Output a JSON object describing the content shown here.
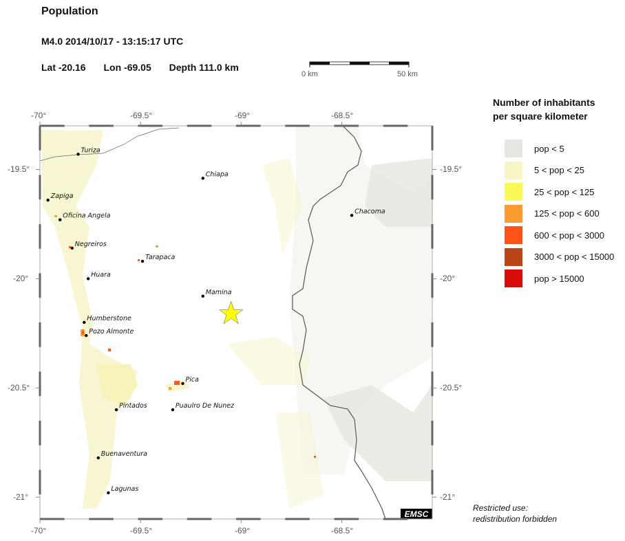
{
  "header": {
    "title": "Population",
    "event": "M4.0  2014/10/17 - 13:15:17 UTC",
    "lat": "Lat -20.16",
    "lon": "Lon -69.05",
    "depth": "Depth 111.0 km"
  },
  "scale_bar": {
    "start": "0 km",
    "end": "50 km"
  },
  "map": {
    "lon_range": [
      -70.0,
      -68.05
    ],
    "lat_range": [
      -21.1,
      -19.3
    ],
    "x_ticks": [
      "-70°",
      "-69.5°",
      "-69°",
      "-68.5°"
    ],
    "x_tick_values": [
      -70,
      -69.5,
      -69,
      -68.5
    ],
    "y_ticks": [
      "-19.5°",
      "-20°",
      "-20.5°",
      "-21°"
    ],
    "y_tick_values": [
      -19.5,
      -20,
      -20.5,
      -21
    ],
    "epicenter": {
      "lon": -69.05,
      "lat": -20.16,
      "marker": "star-icon",
      "color": "#ffff00"
    },
    "towns": [
      {
        "name": "Turiza",
        "lon": -69.81,
        "lat": -19.43
      },
      {
        "name": "Chiapa",
        "lon": -69.19,
        "lat": -19.54
      },
      {
        "name": "Zapiga",
        "lon": -69.96,
        "lat": -19.64
      },
      {
        "name": "Oficina Angela",
        "lon": -69.9,
        "lat": -19.73
      },
      {
        "name": "Chacoma",
        "lon": -68.45,
        "lat": -19.71
      },
      {
        "name": "Negreiros",
        "lon": -69.84,
        "lat": -19.86
      },
      {
        "name": "Tarapaca",
        "lon": -69.49,
        "lat": -19.92
      },
      {
        "name": "Huara",
        "lon": -69.76,
        "lat": -20.0
      },
      {
        "name": "Mamina",
        "lon": -69.19,
        "lat": -20.08
      },
      {
        "name": "Humberstone",
        "lon": -69.78,
        "lat": -20.2
      },
      {
        "name": "Pozo Almonte",
        "lon": -69.77,
        "lat": -20.26
      },
      {
        "name": "Pica",
        "lon": -69.29,
        "lat": -20.48
      },
      {
        "name": "Pintados",
        "lon": -69.62,
        "lat": -20.6
      },
      {
        "name": "Puaulro De Nunez",
        "lon": -69.34,
        "lat": -20.6
      },
      {
        "name": "Buenaventura",
        "lon": -69.71,
        "lat": -20.82
      },
      {
        "name": "Lagunas",
        "lon": -69.66,
        "lat": -20.98
      }
    ],
    "logo": "EMSC"
  },
  "legend": {
    "title_line1": "Number of inhabitants",
    "title_line2": "per square kilometer",
    "items": [
      {
        "label": "pop < 5",
        "color": "#e6e6e3"
      },
      {
        "label": "5 < pop < 25",
        "color": "#f8f6c6"
      },
      {
        "label": "25 < pop < 125",
        "color": "#fbf95a"
      },
      {
        "label": "125 < pop < 600",
        "color": "#fb9a30"
      },
      {
        "label": "600 < pop < 3000",
        "color": "#fc5418"
      },
      {
        "label": "3000 < pop < 15000",
        "color": "#b94518"
      },
      {
        "label": "pop > 15000",
        "color": "#d80b0b"
      }
    ]
  },
  "note": {
    "line1": "Restricted use:",
    "line2": "redistribution forbidden"
  }
}
